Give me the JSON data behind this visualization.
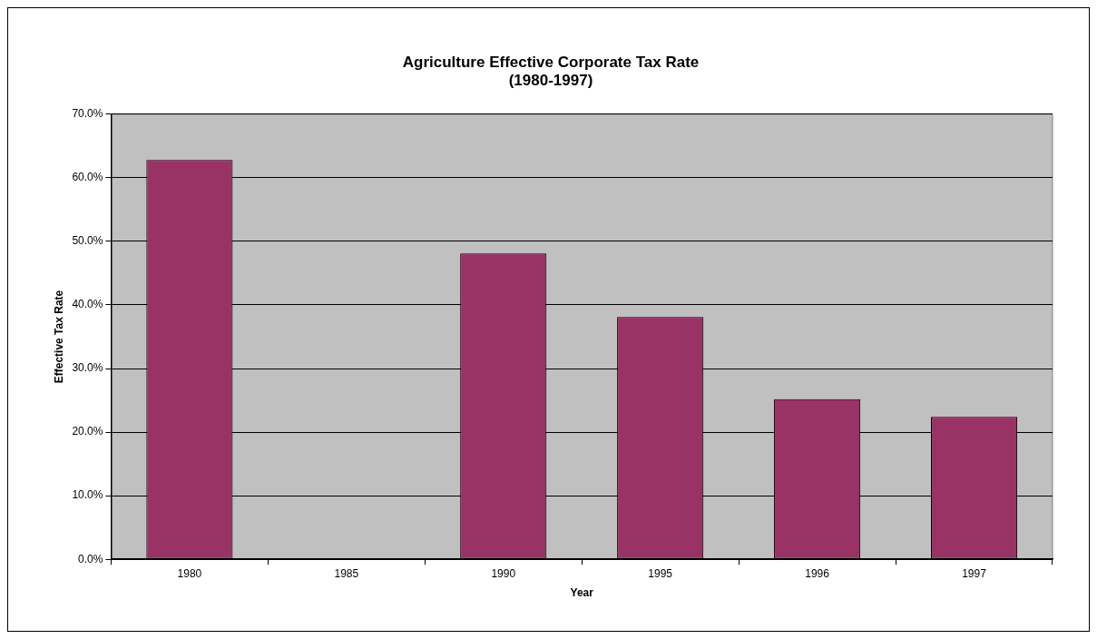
{
  "chart_data": {
    "type": "bar",
    "title": "Agriculture Effective Corporate Tax Rate\n(1980-1997)",
    "xlabel": "Year",
    "ylabel": "Effective Tax Rate",
    "categories": [
      "1980",
      "1985",
      "1990",
      "1995",
      "1996",
      "1997"
    ],
    "values": [
      62.8,
      null,
      48.1,
      38.1,
      25.2,
      22.4
    ],
    "color": "#993366",
    "ylim": [
      0,
      70
    ],
    "yticks": [
      {
        "value": 0,
        "label": "0.0%"
      },
      {
        "value": 10,
        "label": "10.0%"
      },
      {
        "value": 20,
        "label": "20.0%"
      },
      {
        "value": 30,
        "label": "30.0%"
      },
      {
        "value": 40,
        "label": "40.0%"
      },
      {
        "value": 50,
        "label": "50.0%"
      },
      {
        "value": 60,
        "label": "60.0%"
      },
      {
        "value": 70,
        "label": "70.0%"
      }
    ],
    "grid": "y",
    "legend": false
  }
}
